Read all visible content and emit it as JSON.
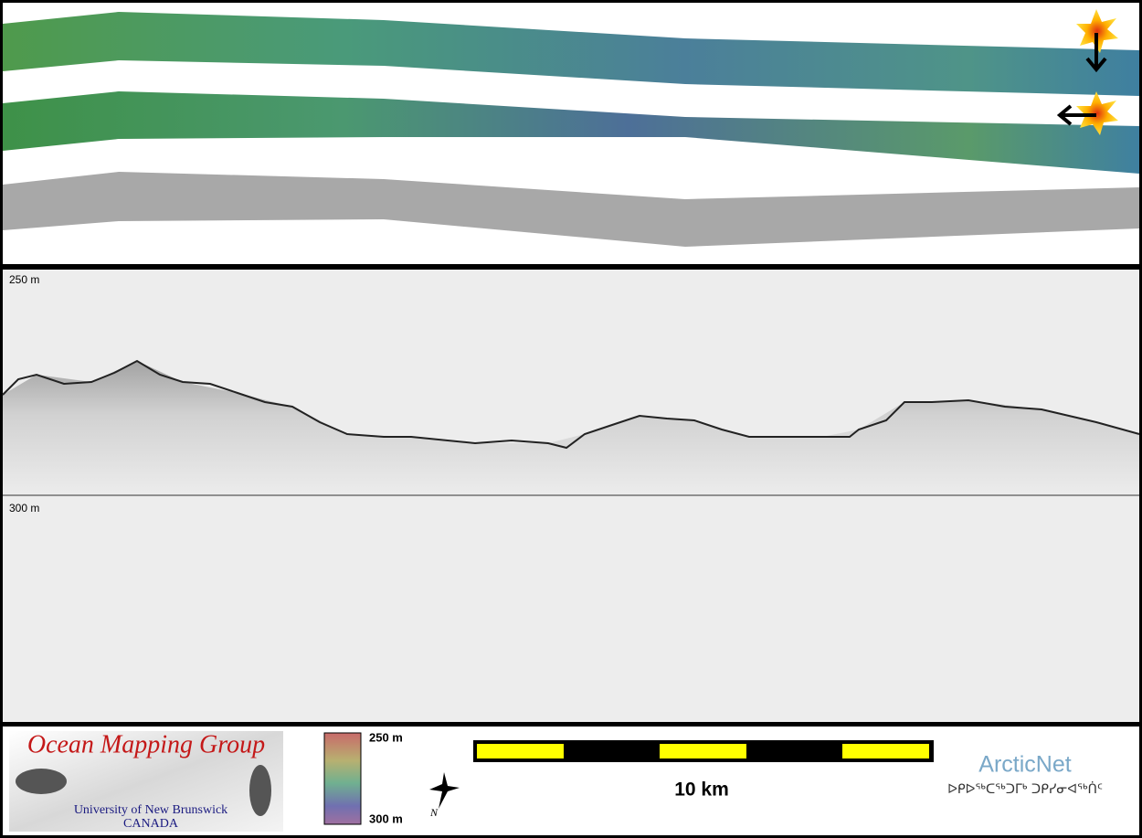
{
  "profile": {
    "upper_depth_label": "250 m",
    "lower_depth_label": "300 m"
  },
  "legend": {
    "logo_title": "Ocean Mapping Group",
    "logo_affiliation": "University of New Brunswick",
    "logo_country": "CANADA",
    "colorbar_top_label": "250 m",
    "colorbar_bottom_label": "300 m",
    "north_label": "N",
    "scale_label": "10 km",
    "partner_name": "ArcticNet",
    "partner_name_inuktitut": "ᐅᑭᐅᖅᑕᖅᑐᒥᒃ ᑐᑭᓯᓂᐊᖅᑏᑦ"
  }
}
